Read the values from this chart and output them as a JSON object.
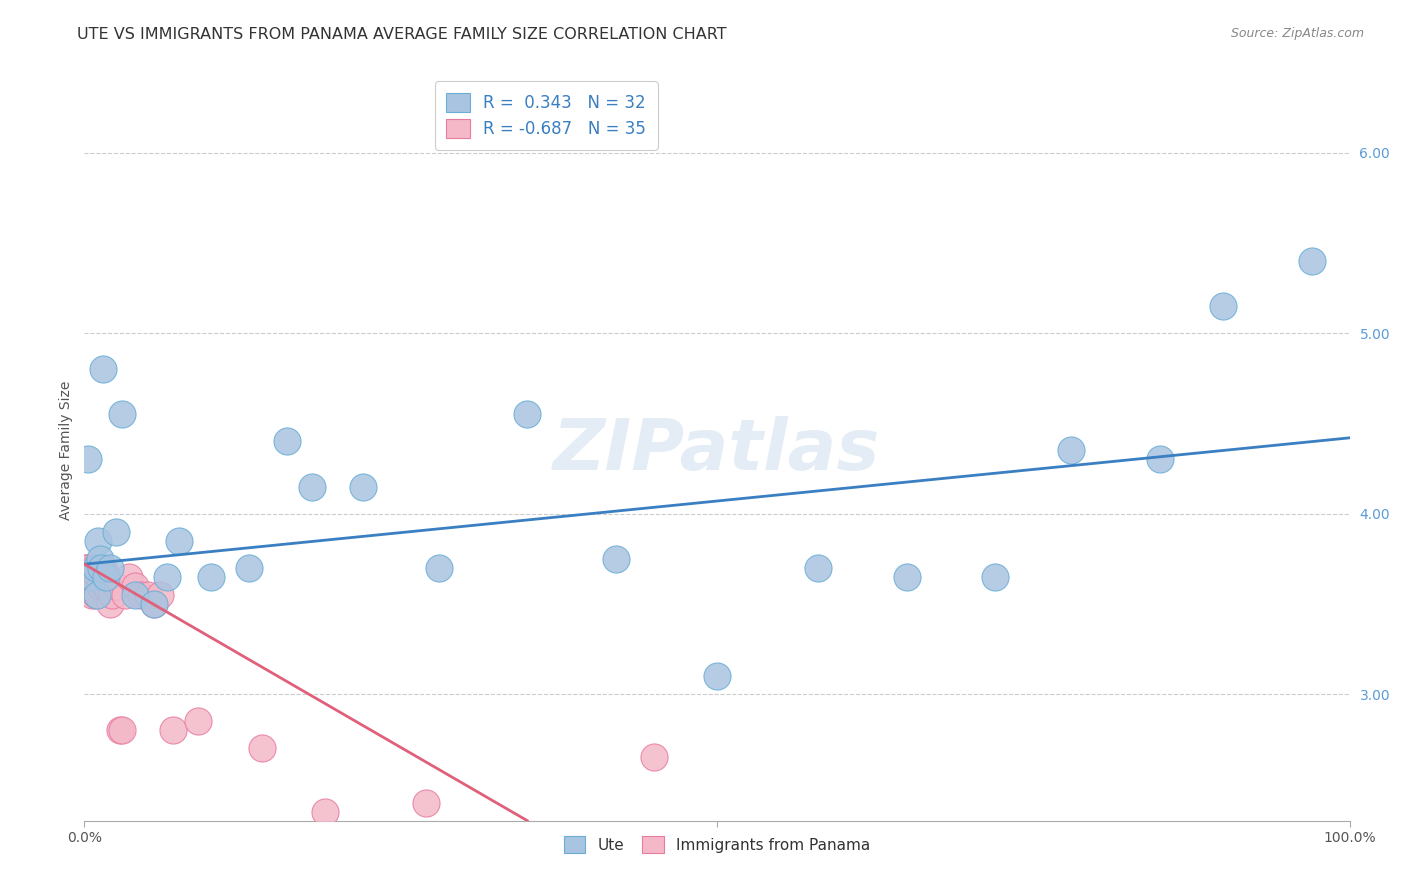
{
  "title": "UTE VS IMMIGRANTS FROM PANAMA AVERAGE FAMILY SIZE CORRELATION CHART",
  "source": "Source: ZipAtlas.com",
  "ylabel": "Average Family Size",
  "watermark": "ZIPatlas",
  "xlim": [
    0.0,
    1.0
  ],
  "ylim": [
    2.3,
    6.4
  ],
  "yticks": [
    3.0,
    4.0,
    5.0,
    6.0
  ],
  "xticks": [
    0.0,
    0.5,
    1.0
  ],
  "xtick_labels": [
    "0.0%",
    "",
    "100.0%"
  ],
  "ute_color": "#a8c4e0",
  "ute_edge_color": "#6aaed6",
  "panama_color": "#f4b8c8",
  "panama_edge_color": "#e87ca0",
  "blue_line_color": "#3a7fc1",
  "pink_line_color": "#e0607a",
  "legend_r_ute": "0.343",
  "legend_n_ute": "32",
  "legend_r_panama": "-0.687",
  "legend_n_panama": "35",
  "ute_x": [
    0.003,
    0.006,
    0.009,
    0.01,
    0.011,
    0.012,
    0.013,
    0.015,
    0.017,
    0.02,
    0.025,
    0.03,
    0.04,
    0.055,
    0.065,
    0.075,
    0.1,
    0.13,
    0.16,
    0.18,
    0.22,
    0.28,
    0.35,
    0.42,
    0.5,
    0.58,
    0.65,
    0.72,
    0.78,
    0.85,
    0.9,
    0.97
  ],
  "ute_y": [
    4.3,
    3.65,
    3.7,
    3.55,
    3.85,
    3.75,
    3.7,
    4.8,
    3.65,
    3.7,
    3.9,
    4.55,
    3.55,
    3.5,
    3.65,
    3.85,
    3.65,
    3.7,
    4.4,
    4.15,
    4.15,
    3.7,
    4.55,
    3.75,
    3.1,
    3.7,
    3.65,
    3.65,
    4.35,
    4.3,
    5.15,
    5.4
  ],
  "panama_x": [
    0.001,
    0.002,
    0.003,
    0.004,
    0.005,
    0.006,
    0.007,
    0.008,
    0.009,
    0.01,
    0.011,
    0.012,
    0.013,
    0.015,
    0.016,
    0.017,
    0.018,
    0.02,
    0.022,
    0.025,
    0.028,
    0.03,
    0.032,
    0.035,
    0.04,
    0.045,
    0.05,
    0.055,
    0.06,
    0.07,
    0.09,
    0.14,
    0.19,
    0.27,
    0.45
  ],
  "panama_y": [
    3.7,
    3.7,
    3.65,
    3.7,
    3.65,
    3.55,
    3.6,
    3.7,
    3.55,
    3.65,
    3.65,
    3.6,
    3.7,
    3.7,
    3.6,
    3.6,
    3.65,
    3.5,
    3.55,
    3.6,
    2.8,
    2.8,
    3.55,
    3.65,
    3.6,
    3.55,
    3.55,
    3.5,
    3.55,
    2.8,
    2.85,
    2.7,
    2.35,
    2.4,
    2.65
  ],
  "blue_line_x0": 0.0,
  "blue_line_y0": 3.72,
  "blue_line_x1": 1.0,
  "blue_line_y1": 4.42,
  "pink_line_x0": 0.0,
  "pink_line_y0": 3.72,
  "pink_line_x1": 0.35,
  "pink_line_y1": 2.3,
  "title_fontsize": 11.5,
  "axis_label_fontsize": 10,
  "tick_fontsize": 10,
  "watermark_fontsize": 52,
  "marker_size": 11
}
